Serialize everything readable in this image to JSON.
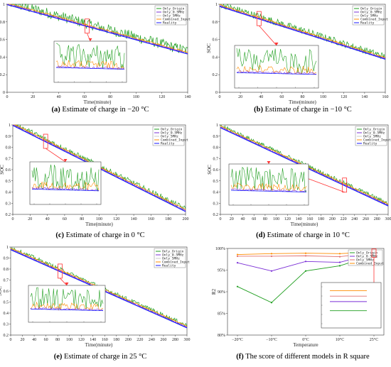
{
  "figure": {
    "legend_labels": [
      "Only_Origin",
      "Only_0.5MHz",
      "Only_5MHz",
      "Combined_Input",
      "Reality"
    ],
    "colors": {
      "Only_Origin": "#1f9e1f",
      "Only_0.5MHz": "#7b2fd6",
      "Only_5MHz": "#c8c8c8",
      "Combined_Input": "#ff8c00",
      "Reality": "#1a1aff",
      "highlight": "#ff3333"
    }
  },
  "chart_data": [
    {
      "type": "line",
      "panel": "a",
      "caption_label": "(a)",
      "caption_text": "Estimate of charge in −20 °C",
      "xlabel": "Time(minute)",
      "ylabel": "SOC",
      "xlim": [
        0,
        140
      ],
      "ylim": [
        0,
        1.0
      ],
      "xticks": [
        0,
        20,
        40,
        60,
        80,
        100,
        120,
        140
      ],
      "yticks": [
        0.0,
        0.2,
        0.4,
        0.6,
        0.8,
        1.0
      ],
      "reality": {
        "x": [
          0,
          140
        ],
        "y": [
          1.0,
          0.44
        ]
      },
      "noise": {
        "Only_Origin": 0.06,
        "Only_0.5MHz": 0.015,
        "Combined_Input": 0.02
      },
      "legend_pos": "top-right",
      "zoom": {
        "x_at": 62
      }
    },
    {
      "type": "line",
      "panel": "b",
      "caption_label": "(b)",
      "caption_text": "Estimate of charge in −10 °C",
      "xlabel": "Time(minute)",
      "ylabel": "SOC",
      "xlim": [
        0,
        160
      ],
      "ylim": [
        0,
        1.0
      ],
      "xticks": [
        0,
        20,
        40,
        60,
        80,
        100,
        120,
        140,
        160
      ],
      "yticks": [
        0.0,
        0.2,
        0.4,
        0.6,
        0.8,
        1.0
      ],
      "reality": {
        "x": [
          0,
          160
        ],
        "y": [
          0.98,
          0.38
        ]
      },
      "noise": {
        "Only_Origin": 0.04,
        "Only_0.5MHz": 0.012,
        "Combined_Input": 0.02
      },
      "legend_pos": "top-right",
      "zoom": {
        "x_at": 38
      }
    },
    {
      "type": "line",
      "panel": "c",
      "caption_label": "(c)",
      "caption_text": "Estimate of charge in 0 °C",
      "xlabel": "Time(minute)",
      "ylabel": "SOC",
      "xlim": [
        0,
        200
      ],
      "ylim": [
        0.2,
        1.0
      ],
      "xticks": [
        0,
        20,
        40,
        60,
        80,
        100,
        120,
        140,
        160,
        180,
        200
      ],
      "yticks": [
        0.2,
        0.3,
        0.4,
        0.5,
        0.6,
        0.7,
        0.8,
        0.9,
        1.0
      ],
      "reality": {
        "x": [
          0,
          200
        ],
        "y": [
          1.0,
          0.23
        ]
      },
      "noise": {
        "Only_Origin": 0.025,
        "Only_0.5MHz": 0.01,
        "Combined_Input": 0.012
      },
      "legend_pos": "top-right",
      "zoom": {
        "x_at": 38
      }
    },
    {
      "type": "line",
      "panel": "d",
      "caption_label": "(d)",
      "caption_text": "Estimate of charge in 10 °C",
      "xlabel": "Time(minute)",
      "ylabel": "SOC",
      "xlim": [
        0,
        300
      ],
      "ylim": [
        0.2,
        1.0
      ],
      "xticks": [
        0,
        20,
        40,
        60,
        80,
        100,
        120,
        140,
        160,
        180,
        200,
        220,
        240,
        260,
        280,
        300
      ],
      "yticks": [
        0.2,
        0.3,
        0.4,
        0.5,
        0.6,
        0.7,
        0.8,
        0.9,
        1.0
      ],
      "reality": {
        "x": [
          0,
          300
        ],
        "y": [
          0.98,
          0.28
        ]
      },
      "noise": {
        "Only_Origin": 0.02,
        "Only_0.5MHz": 0.008,
        "Combined_Input": 0.01
      },
      "legend_pos": "top-right",
      "zoom": {
        "x_at": 222
      }
    },
    {
      "type": "line",
      "panel": "e",
      "caption_label": "(e)",
      "caption_text": "Estimate of charge in 25 °C",
      "xlabel": "Time(minute)",
      "ylabel": "SOC",
      "xlim": [
        0,
        300
      ],
      "ylim": [
        0.2,
        1.0
      ],
      "xticks": [
        0,
        20,
        40,
        60,
        80,
        100,
        120,
        140,
        160,
        180,
        200,
        220,
        240,
        260,
        280,
        300
      ],
      "yticks": [
        0.2,
        0.3,
        0.4,
        0.5,
        0.6,
        0.7,
        0.8,
        0.9,
        1.0
      ],
      "reality": {
        "x": [
          0,
          300
        ],
        "y": [
          0.98,
          0.27
        ]
      },
      "noise": {
        "Only_Origin": 0.02,
        "Only_0.5MHz": 0.008,
        "Combined_Input": 0.01
      },
      "legend_pos": "top-right",
      "zoom": {
        "x_at": 84
      }
    },
    {
      "type": "line",
      "panel": "f",
      "caption_label": "(f)",
      "caption_text": "The score of different models in R square",
      "xlabel": "Temperature",
      "ylabel": "R2",
      "ylim": [
        80,
        100
      ],
      "categories": [
        "−20°C",
        "−10°C",
        "0°C",
        "10°C",
        "25°C"
      ],
      "yticks": [
        80,
        85,
        90,
        95,
        100
      ],
      "ytick_labels": [
        "80%",
        "85%",
        "90%",
        "95%",
        "100%"
      ],
      "series": [
        {
          "name": "Only_Origin",
          "values": [
            91.2,
            87.5,
            94.8,
            96.0,
            98.5
          ]
        },
        {
          "name": "Only_0.5MHz",
          "values": [
            96.7,
            94.8,
            97.0,
            96.8,
            98.9
          ]
        },
        {
          "name": "Only_5MHz",
          "values": [
            98.2,
            98.2,
            98.3,
            98.1,
            99.0
          ]
        },
        {
          "name": "Combined_Input",
          "values": [
            98.6,
            98.8,
            98.9,
            98.8,
            99.2
          ]
        }
      ],
      "legend_pos": "top-right",
      "zoom": {
        "category_at": "25°C"
      }
    }
  ]
}
